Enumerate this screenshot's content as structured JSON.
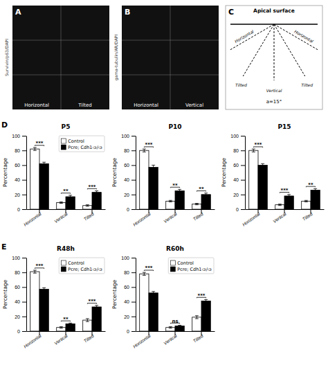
{
  "chart_data": [
    {
      "type": "image",
      "title": "A",
      "annotations": [
        "Horizontal",
        "Tilted",
        "Survivin/p63/DAPI"
      ]
    },
    {
      "type": "image",
      "title": "B",
      "annotations": [
        "Horizontal",
        "Vertical",
        "gama-tubulin/AR/DAPI"
      ]
    },
    {
      "type": "diagram",
      "title": "C",
      "annotations": [
        "Apical surface",
        "Horizontal",
        "Horizontal",
        "Tilted",
        "Tilted",
        "Vertical",
        "a=15°"
      ]
    },
    {
      "type": "bar",
      "panel_label": "D",
      "title": "P5",
      "ylabel": "Percentage",
      "categories": [
        "Horizontal",
        "Vertical",
        "Tilted"
      ],
      "series": [
        {
          "name": "Control",
          "color": "white",
          "values": [
            82,
            9,
            5
          ],
          "errors": [
            2,
            1,
            1
          ]
        },
        {
          "name": "Pcre; Cdh1ᴞ/ᴞ",
          "color": "black",
          "values": [
            62,
            17,
            23
          ],
          "errors": [
            2,
            2,
            2
          ]
        }
      ],
      "annotations": [
        "***",
        "**",
        "***"
      ],
      "ylim": [
        0,
        100
      ],
      "yticks": [
        0,
        20,
        40,
        60,
        80,
        100
      ],
      "grid": false,
      "legend": "upper right"
    },
    {
      "type": "bar",
      "title": "P10",
      "ylabel": "Percentage",
      "categories": [
        "Horizontal",
        "Vertical",
        "Tilted"
      ],
      "series": [
        {
          "name": "Control",
          "color": "white",
          "values": [
            80,
            11,
            7
          ],
          "errors": [
            2,
            1,
            1
          ]
        },
        {
          "name": "Pcre; Cdh1ᴞ/ᴞ",
          "color": "black",
          "values": [
            57,
            25,
            20
          ],
          "errors": [
            3,
            2,
            2
          ]
        }
      ],
      "annotations": [
        "***",
        "**",
        "**"
      ],
      "ylim": [
        0,
        100
      ],
      "yticks": [
        0,
        20,
        40,
        60,
        80,
        100
      ],
      "grid": false,
      "legend": false
    },
    {
      "type": "bar",
      "title": "P15",
      "ylabel": "Percentage",
      "categories": [
        "Horizontal",
        "Vertical",
        "Tilted"
      ],
      "series": [
        {
          "name": "Control",
          "color": "white",
          "values": [
            80,
            6,
            11
          ],
          "errors": [
            2,
            1,
            1
          ]
        },
        {
          "name": "Pcre; Cdh1ᴞ/ᴞ",
          "color": "black",
          "values": [
            60,
            18,
            26
          ],
          "errors": [
            2,
            2,
            2
          ]
        }
      ],
      "annotations": [
        "***",
        "***",
        "**"
      ],
      "ylim": [
        0,
        100
      ],
      "yticks": [
        0,
        20,
        40,
        60,
        80,
        100
      ],
      "grid": false,
      "legend": false
    },
    {
      "type": "bar",
      "panel_label": "E",
      "title": "R48h",
      "ylabel": "Percentage",
      "categories": [
        "Horizontal",
        "Vertical",
        "Tilted"
      ],
      "series": [
        {
          "name": "Control",
          "color": "white",
          "values": [
            81,
            5,
            15
          ],
          "errors": [
            2,
            1,
            2
          ]
        },
        {
          "name": "Pcre; Cdh1ᴞ/ᴞ",
          "color": "black",
          "values": [
            57,
            10,
            33
          ],
          "errors": [
            2,
            1,
            2
          ]
        }
      ],
      "annotations": [
        "***",
        "**",
        "***"
      ],
      "ylim": [
        0,
        100
      ],
      "yticks": [
        0,
        20,
        40,
        60,
        80,
        100
      ],
      "grid": false,
      "legend": "upper right"
    },
    {
      "type": "bar",
      "title": "R60h",
      "ylabel": "Percentage",
      "categories": [
        "Horizontal",
        "Vertical",
        "Tilted"
      ],
      "series": [
        {
          "name": "Control",
          "color": "white",
          "values": [
            78,
            5,
            19
          ],
          "errors": [
            2,
            1,
            2
          ]
        },
        {
          "name": "Pcre; Cdh1ᴞ/ᴞ",
          "color": "black",
          "values": [
            52,
            7,
            41
          ],
          "errors": [
            2,
            1,
            2
          ]
        }
      ],
      "annotations": [
        "***",
        "ns",
        "***"
      ],
      "ylim": [
        0,
        100
      ],
      "yticks": [
        0,
        20,
        40,
        60,
        80,
        100
      ],
      "grid": false,
      "legend": "upper right"
    }
  ]
}
